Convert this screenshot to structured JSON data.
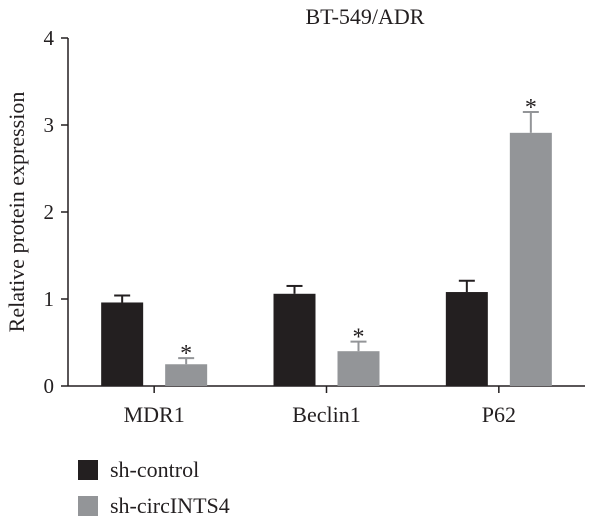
{
  "chart_data": {
    "type": "bar",
    "title": "BT-549/ADR",
    "ylabel": "Relative protein expression",
    "xlabel": "",
    "ylim": [
      0,
      4
    ],
    "yticks": [
      0,
      1,
      2,
      3,
      4
    ],
    "categories": [
      "MDR1",
      "Beclin1",
      "P62"
    ],
    "series": [
      {
        "name": "sh-control",
        "color": "#231f20",
        "values": [
          0.96,
          1.06,
          1.08
        ],
        "errors": [
          0.08,
          0.09,
          0.13
        ],
        "significant": [
          false,
          false,
          false
        ]
      },
      {
        "name": "sh-circINTS4",
        "color": "#939598",
        "values": [
          0.25,
          0.4,
          2.91
        ],
        "errors": [
          0.07,
          0.11,
          0.24
        ],
        "significant": [
          true,
          true,
          true
        ]
      }
    ],
    "significance_marker": "*",
    "legend_position": "bottom-left",
    "grid": false
  }
}
